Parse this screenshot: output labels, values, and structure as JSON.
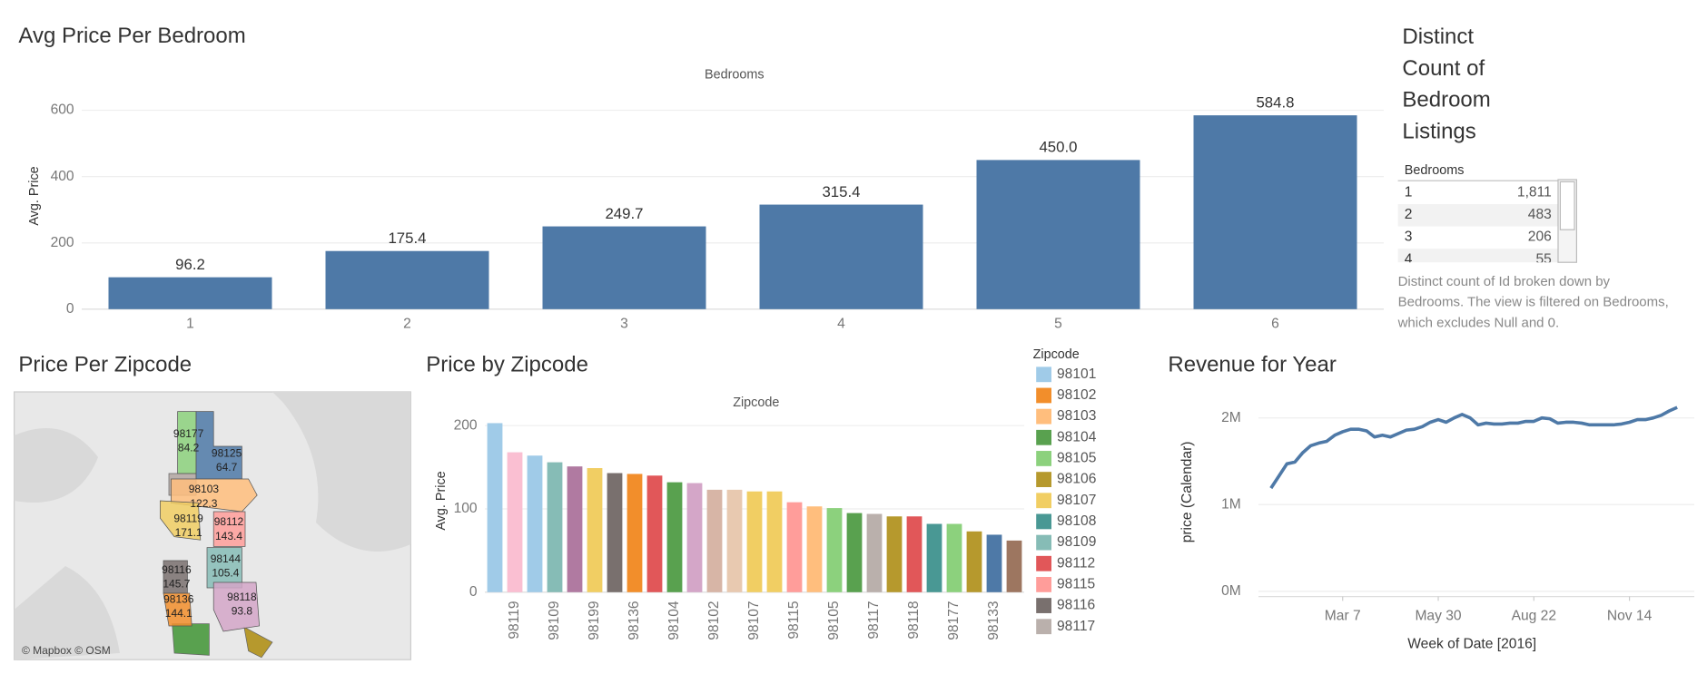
{
  "chart_data": [
    {
      "type": "bar",
      "title": "Avg Price Per Bedroom",
      "x_header": "Bedrooms",
      "ylabel": "Avg. Price",
      "categories": [
        "1",
        "2",
        "3",
        "4",
        "5",
        "6"
      ],
      "values": [
        96.2,
        175.4,
        249.7,
        315.4,
        450.0,
        584.8
      ],
      "value_labels": [
        "96.2",
        "175.4",
        "249.7",
        "315.4",
        "450.0",
        "584.8"
      ],
      "color": "#4e79a7",
      "ylim": [
        0,
        670
      ],
      "yticks": [
        0,
        200,
        400,
        600
      ],
      "grid": true
    },
    {
      "type": "table",
      "title": "Distinct Count of Bedroom Listings",
      "header": "Bedrooms",
      "rows": [
        [
          "1",
          "1,811"
        ],
        [
          "2",
          "483"
        ],
        [
          "3",
          "206"
        ],
        [
          "4",
          "55"
        ]
      ],
      "caption": "Distinct count of Id broken down by Bedrooms. The view is filtered on Bedrooms, which excludes Null and 0."
    },
    {
      "type": "map",
      "title": "Price Per Zipcode",
      "attribution": "© Mapbox © OSM",
      "regions": [
        {
          "zipcode": "98177",
          "value": 84.2,
          "color": "#8cd17d"
        },
        {
          "zipcode": "98125",
          "value": 64.7,
          "color": "#4e79a7"
        },
        {
          "zipcode": "98103",
          "value": 122.3,
          "color": "#ffbe7d"
        },
        {
          "zipcode": "98119",
          "value": 171.1,
          "color": "#f1ce63"
        },
        {
          "zipcode": "98112",
          "value": 143.4,
          "color": "#ff9d9a"
        },
        {
          "zipcode": "98144",
          "value": 105.4,
          "color": "#86bcb6"
        },
        {
          "zipcode": "98116",
          "value": 145.7,
          "color": "#79706e"
        },
        {
          "zipcode": "98136",
          "value": 144.1,
          "color": "#f28e2b"
        },
        {
          "zipcode": "98118",
          "value": 93.8,
          "color": "#d4a6c8"
        }
      ]
    },
    {
      "type": "bar",
      "title": "Price by Zipcode",
      "x_header": "Zipcode",
      "ylabel": "Avg. Price",
      "categories": [
        null,
        "98119",
        null,
        "98109",
        null,
        "98199",
        null,
        "98136",
        null,
        "98104",
        null,
        "98102",
        null,
        "98107",
        null,
        "98115",
        null,
        "98105",
        null,
        "98117",
        null,
        "98118",
        null,
        "98177",
        null,
        "98133",
        null
      ],
      "values": [
        203,
        168,
        164,
        156,
        151,
        149,
        143,
        142,
        140,
        132,
        131,
        123,
        123,
        121,
        121,
        108,
        103,
        101,
        95,
        94,
        91,
        91,
        82,
        82,
        73,
        69,
        62
      ],
      "colors": [
        "#a0cbe8",
        "#fabfd2",
        "#a0cbe8",
        "#86bcb6",
        "#b07aa1",
        "#f1ce63",
        "#79706e",
        "#f28e2b",
        "#e15759",
        "#59a14f",
        "#d4a6c8",
        "#d7b5a6",
        "#e8c9b0",
        "#f1ce63",
        "#f1ce63",
        "#ff9d9a",
        "#ffbe7d",
        "#8cd17d",
        "#59a14f",
        "#bab0ac",
        "#b6992d",
        "#e15759",
        "#499894",
        "#8cd17d",
        "#b6992d",
        "#4e79a7",
        "#9d7660"
      ],
      "ylim": [
        0,
        217
      ],
      "yticks": [
        0,
        100,
        200
      ],
      "grid": true,
      "legend": {
        "title": "Zipcode",
        "items": [
          {
            "name": "98101",
            "color": "#a0cbe8"
          },
          {
            "name": "98102",
            "color": "#f28e2b"
          },
          {
            "name": "98103",
            "color": "#ffbe7d"
          },
          {
            "name": "98104",
            "color": "#59a14f"
          },
          {
            "name": "98105",
            "color": "#8cd17d"
          },
          {
            "name": "98106",
            "color": "#b6992d"
          },
          {
            "name": "98107",
            "color": "#f1ce63"
          },
          {
            "name": "98108",
            "color": "#499894"
          },
          {
            "name": "98109",
            "color": "#86bcb6"
          },
          {
            "name": "98112",
            "color": "#e15759"
          },
          {
            "name": "98115",
            "color": "#ff9d9a"
          },
          {
            "name": "98116",
            "color": "#79706e"
          },
          {
            "name": "98117",
            "color": "#bab0ac"
          }
        ]
      }
    },
    {
      "type": "line",
      "title": "Revenue for Year",
      "xlabel": "Week of Date [2016]",
      "ylabel": "price (Calendar)",
      "color": "#4e79a7",
      "x": [
        "2016-01-04",
        "2016-01-11",
        "2016-01-18",
        "2016-01-25",
        "2016-02-01",
        "2016-02-08",
        "2016-02-15",
        "2016-02-22",
        "2016-02-29",
        "2016-03-07",
        "2016-03-14",
        "2016-03-21",
        "2016-03-28",
        "2016-04-04",
        "2016-04-11",
        "2016-04-18",
        "2016-04-25",
        "2016-05-02",
        "2016-05-09",
        "2016-05-16",
        "2016-05-23",
        "2016-05-30",
        "2016-06-06",
        "2016-06-13",
        "2016-06-20",
        "2016-06-27",
        "2016-07-04",
        "2016-07-11",
        "2016-07-18",
        "2016-07-25",
        "2016-08-01",
        "2016-08-08",
        "2016-08-15",
        "2016-08-22",
        "2016-08-29",
        "2016-09-05",
        "2016-09-12",
        "2016-09-19",
        "2016-09-26",
        "2016-10-03",
        "2016-10-10",
        "2016-10-17",
        "2016-10-24",
        "2016-10-31",
        "2016-11-07",
        "2016-11-14",
        "2016-11-21",
        "2016-11-28",
        "2016-12-05",
        "2016-12-12",
        "2016-12-19",
        "2016-12-26"
      ],
      "values": [
        1190000,
        1330000,
        1470000,
        1490000,
        1600000,
        1680000,
        1710000,
        1730000,
        1800000,
        1840000,
        1870000,
        1870000,
        1850000,
        1780000,
        1800000,
        1780000,
        1820000,
        1860000,
        1870000,
        1900000,
        1950000,
        1980000,
        1950000,
        2000000,
        2040000,
        2000000,
        1920000,
        1940000,
        1930000,
        1930000,
        1940000,
        1940000,
        1960000,
        1960000,
        2000000,
        1990000,
        1940000,
        1950000,
        1950000,
        1940000,
        1920000,
        1920000,
        1920000,
        1920000,
        1930000,
        1950000,
        1980000,
        1980000,
        2000000,
        2030000,
        2080000,
        2120000
      ],
      "xlim": [
        "2015-12-24",
        "2017-01-10"
      ],
      "xticks": [
        {
          "value": "2016-03-07",
          "label": "Mar 7"
        },
        {
          "value": "2016-05-30",
          "label": "May 30"
        },
        {
          "value": "2016-08-22",
          "label": "Aug 22"
        },
        {
          "value": "2016-11-14",
          "label": "Nov 14"
        }
      ],
      "ylim": [
        -60000,
        2300000
      ],
      "yticks": [
        {
          "value": 0,
          "label": "0M"
        },
        {
          "value": 1000000,
          "label": "1M"
        },
        {
          "value": 2000000,
          "label": "2M"
        }
      ],
      "grid": true
    }
  ]
}
